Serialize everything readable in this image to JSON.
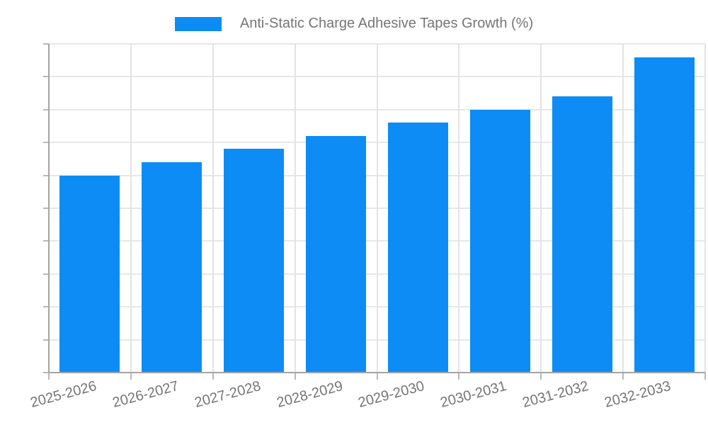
{
  "legend": {
    "label": "Anti-Static Charge Adhesive Tapes Growth (%)"
  },
  "colors": {
    "bar": "#0d8cf5",
    "value_label": "#ffffff",
    "tick_text": "#757575",
    "gridline": "#e7e7e7",
    "axis_line": "#a4a4a4"
  },
  "chart_data": {
    "type": "bar",
    "title": "Anti-Static Charge Adhesive Tapes Growth (%)",
    "categories": [
      "2025-2026",
      "2026-2027",
      "2027-2028",
      "2028-2029",
      "2029-2030",
      "2030-2031",
      "2031-2032",
      "2032-2033"
    ],
    "values": [
      30,
      32,
      34,
      36,
      38,
      40,
      42,
      48
    ],
    "xlabel": "",
    "ylabel": "",
    "ylim": [
      0,
      50
    ],
    "ytick_step": 5,
    "yticks": [
      0,
      5,
      10,
      15,
      20,
      25,
      30,
      35,
      40,
      45,
      50
    ],
    "grid": true,
    "legend_position": "top-center",
    "value_labels": "inside-center",
    "xtick_rotation_deg": -15
  }
}
